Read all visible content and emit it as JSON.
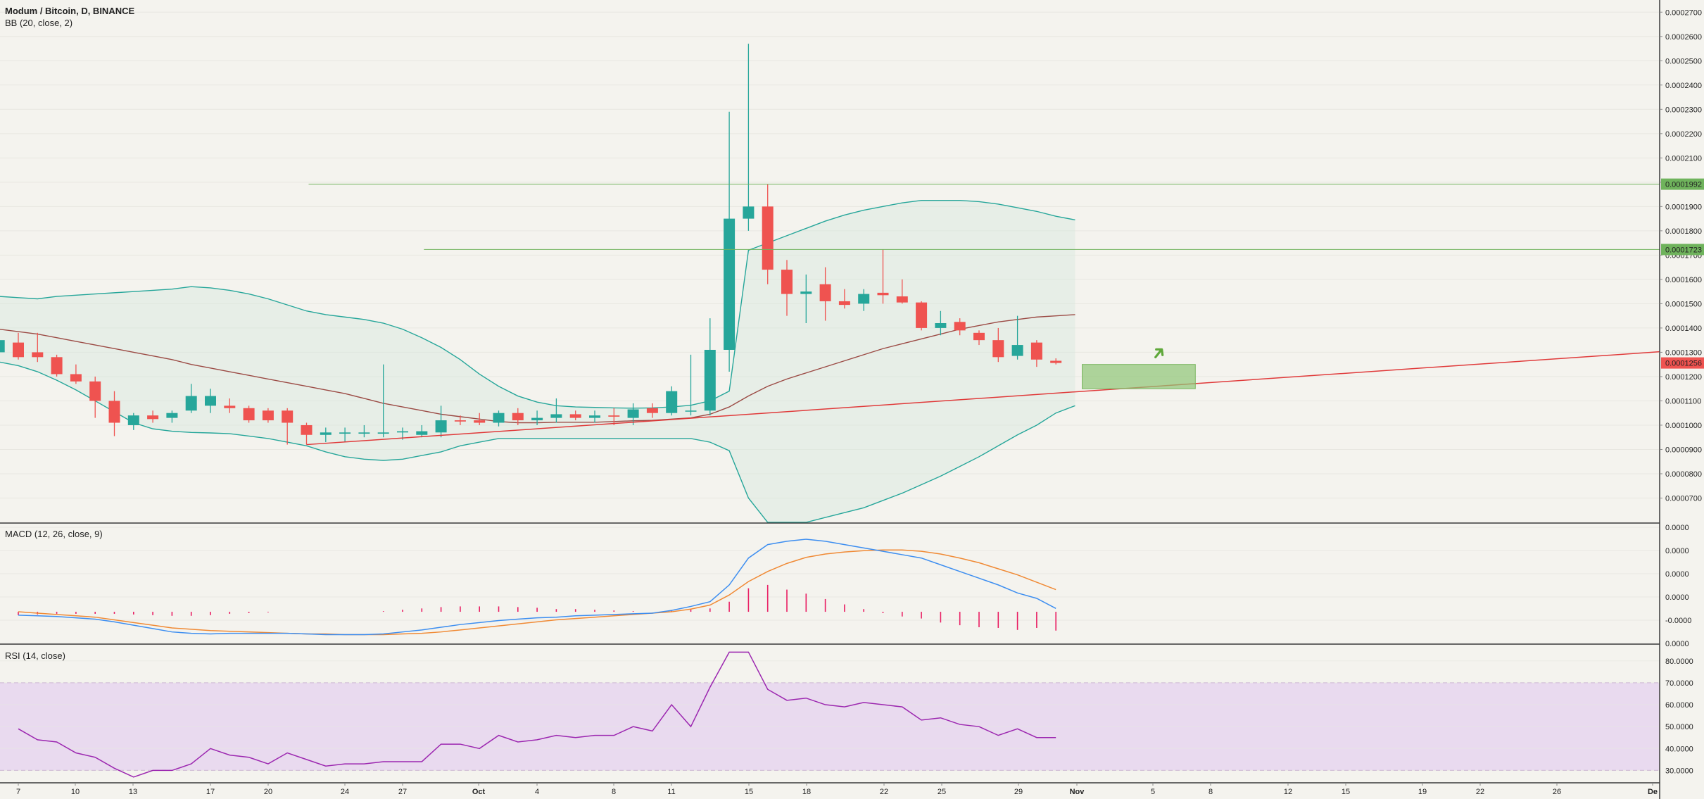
{
  "chart_data": [
    {
      "type": "candlestick",
      "title": "Modum / Bitcoin, D, BINANCE",
      "indicator_label": "BB (20, close, 2)",
      "ylim": [
        6e-05,
        0.000275
      ],
      "y_ticks": [
        "0.0002700",
        "0.0002600",
        "0.0002500",
        "0.0002400",
        "0.0002300",
        "0.0002200",
        "0.0002100",
        "0.0002000",
        "0.0001900",
        "0.0001800",
        "0.0001700",
        "0.0001600",
        "0.0001500",
        "0.0001400",
        "0.0001300",
        "0.0001200",
        "0.0001100",
        "0.0001000",
        "0.0000900",
        "0.0000800",
        "0.0000700"
      ],
      "price_tags": [
        {
          "value": 0.0001992,
          "label": "0.0001992",
          "color": "#6fb35c"
        },
        {
          "value": 0.0001723,
          "label": "0.0001723",
          "color": "#6fb35c"
        },
        {
          "value": 0.0001256,
          "label": "0.0001256",
          "color": "#ef5350"
        }
      ],
      "candles": [
        {
          "date": "Sep 6",
          "o": 0.00013,
          "h": 0.000139,
          "l": 0.000126,
          "c": 0.000135
        },
        {
          "date": "Sep 7",
          "o": 0.000134,
          "h": 0.000138,
          "l": 0.000127,
          "c": 0.000128
        },
        {
          "date": "Sep 8",
          "o": 0.00013,
          "h": 0.000138,
          "l": 0.000126,
          "c": 0.000128
        },
        {
          "date": "Sep 9",
          "o": 0.000128,
          "h": 0.000129,
          "l": 0.00012,
          "c": 0.000121
        },
        {
          "date": "Sep 10",
          "o": 0.000121,
          "h": 0.000125,
          "l": 0.000117,
          "c": 0.000118
        },
        {
          "date": "Sep 11",
          "o": 0.000118,
          "h": 0.00012,
          "l": 0.000103,
          "c": 0.00011
        },
        {
          "date": "Sep 12",
          "o": 0.00011,
          "h": 0.000114,
          "l": 9.55e-05,
          "c": 0.000101
        },
        {
          "date": "Sep 13",
          "o": 0.0001,
          "h": 0.000105,
          "l": 9.8e-05,
          "c": 0.000104
        },
        {
          "date": "Sep 14",
          "o": 0.000104,
          "h": 0.000106,
          "l": 0.000101,
          "c": 0.0001025
        },
        {
          "date": "Sep 15",
          "o": 0.000103,
          "h": 0.000106,
          "l": 0.000101,
          "c": 0.000105
        },
        {
          "date": "Sep 16",
          "o": 0.000106,
          "h": 0.000117,
          "l": 0.000105,
          "c": 0.000112
        },
        {
          "date": "Sep 17",
          "o": 0.000108,
          "h": 0.000115,
          "l": 0.000105,
          "c": 0.000112
        },
        {
          "date": "Sep 18",
          "o": 0.000108,
          "h": 0.000111,
          "l": 0.000105,
          "c": 0.000107
        },
        {
          "date": "Sep 19",
          "o": 0.000107,
          "h": 0.000108,
          "l": 0.000101,
          "c": 0.000102
        },
        {
          "date": "Sep 20",
          "o": 0.000106,
          "h": 0.000107,
          "l": 0.000101,
          "c": 0.000102
        },
        {
          "date": "Sep 21",
          "o": 0.000106,
          "h": 0.000107,
          "l": 9.2e-05,
          "c": 0.000101
        },
        {
          "date": "Sep 22",
          "o": 0.0001,
          "h": 0.000101,
          "l": 9.2e-05,
          "c": 9.6e-05
        },
        {
          "date": "Sep 23",
          "o": 9.6e-05,
          "h": 9.9e-05,
          "l": 9.3e-05,
          "c": 9.7e-05
        },
        {
          "date": "Sep 24",
          "o": 9.65e-05,
          "h": 9.9e-05,
          "l": 9.3e-05,
          "c": 9.7e-05
        },
        {
          "date": "Sep 25",
          "o": 9.65e-05,
          "h": 0.0001,
          "l": 9.5e-05,
          "c": 9.7e-05
        },
        {
          "date": "Sep 26",
          "o": 9.65e-05,
          "h": 0.000125,
          "l": 9.5e-05,
          "c": 9.7e-05
        },
        {
          "date": "Sep 27",
          "o": 9.7e-05,
          "h": 9.9e-05,
          "l": 9.4e-05,
          "c": 9.75e-05
        },
        {
          "date": "Sep 28",
          "o": 9.6e-05,
          "h": 0.0001,
          "l": 9.5e-05,
          "c": 9.75e-05
        },
        {
          "date": "Sep 29",
          "o": 9.7e-05,
          "h": 0.000108,
          "l": 9.5e-05,
          "c": 0.000102
        },
        {
          "date": "Sep 30",
          "o": 0.000102,
          "h": 0.000104,
          "l": 0.0001,
          "c": 0.0001015
        },
        {
          "date": "Oct 1",
          "o": 0.000102,
          "h": 0.000105,
          "l": 0.0001,
          "c": 0.000101
        },
        {
          "date": "Oct 2",
          "o": 0.000101,
          "h": 0.000106,
          "l": 9.95e-05,
          "c": 0.000105
        },
        {
          "date": "Oct 3",
          "o": 0.000105,
          "h": 0.000107,
          "l": 0.0001,
          "c": 0.000102
        },
        {
          "date": "Oct 4",
          "o": 0.000102,
          "h": 0.000106,
          "l": 0.0001,
          "c": 0.000103
        },
        {
          "date": "Oct 5",
          "o": 0.000103,
          "h": 0.000111,
          "l": 0.000101,
          "c": 0.0001045
        },
        {
          "date": "Oct 6",
          "o": 0.0001045,
          "h": 0.000106,
          "l": 0.000102,
          "c": 0.000103
        },
        {
          "date": "Oct 7",
          "o": 0.000103,
          "h": 0.000106,
          "l": 0.000101,
          "c": 0.000104
        },
        {
          "date": "Oct 8",
          "o": 0.000104,
          "h": 0.000107,
          "l": 0.0001,
          "c": 0.0001035
        },
        {
          "date": "Oct 9",
          "o": 0.000103,
          "h": 0.000109,
          "l": 0.0001,
          "c": 0.0001065
        },
        {
          "date": "Oct 10",
          "o": 0.000107,
          "h": 0.000109,
          "l": 0.000103,
          "c": 0.000105
        },
        {
          "date": "Oct 11",
          "o": 0.000105,
          "h": 0.000116,
          "l": 0.000104,
          "c": 0.000114
        },
        {
          "date": "Oct 12",
          "o": 0.000106,
          "h": 0.000129,
          "l": 0.000104,
          "c": 0.000106
        },
        {
          "date": "Oct 13",
          "o": 0.000106,
          "h": 0.000144,
          "l": 0.000104,
          "c": 0.000131
        },
        {
          "date": "Oct 14",
          "o": 0.000131,
          "h": 0.000229,
          "l": 0.000122,
          "c": 0.000185
        },
        {
          "date": "Oct 15",
          "o": 0.000185,
          "h": 0.000257,
          "l": 0.00018,
          "c": 0.00019
        },
        {
          "date": "Oct 16",
          "o": 0.00019,
          "h": 0.0001992,
          "l": 0.000158,
          "c": 0.000164
        },
        {
          "date": "Oct 17",
          "o": 0.000164,
          "h": 0.000168,
          "l": 0.000145,
          "c": 0.000154
        },
        {
          "date": "Oct 18",
          "o": 0.000154,
          "h": 0.000162,
          "l": 0.000142,
          "c": 0.000155
        },
        {
          "date": "Oct 19",
          "o": 0.000158,
          "h": 0.000165,
          "l": 0.000143,
          "c": 0.000151
        },
        {
          "date": "Oct 20",
          "o": 0.000151,
          "h": 0.000156,
          "l": 0.000148,
          "c": 0.0001495
        },
        {
          "date": "Oct 21",
          "o": 0.00015,
          "h": 0.000156,
          "l": 0.000147,
          "c": 0.000154
        },
        {
          "date": "Oct 22",
          "o": 0.0001545,
          "h": 0.0001723,
          "l": 0.00015,
          "c": 0.0001535
        },
        {
          "date": "Oct 23",
          "o": 0.000153,
          "h": 0.00016,
          "l": 0.00015,
          "c": 0.0001505
        },
        {
          "date": "Oct 24",
          "o": 0.0001505,
          "h": 0.000151,
          "l": 0.000139,
          "c": 0.00014
        },
        {
          "date": "Oct 25",
          "o": 0.00014,
          "h": 0.000147,
          "l": 0.000137,
          "c": 0.000142
        },
        {
          "date": "Oct 26",
          "o": 0.0001425,
          "h": 0.000144,
          "l": 0.000137,
          "c": 0.000139
        },
        {
          "date": "Oct 27",
          "o": 0.000138,
          "h": 0.000139,
          "l": 0.000133,
          "c": 0.000135
        },
        {
          "date": "Oct 28",
          "o": 0.000135,
          "h": 0.00014,
          "l": 0.000126,
          "c": 0.000128
        },
        {
          "date": "Oct 29",
          "o": 0.0001285,
          "h": 0.000145,
          "l": 0.000127,
          "c": 0.000133
        },
        {
          "date": "Oct 30",
          "o": 0.000134,
          "h": 0.000135,
          "l": 0.000124,
          "c": 0.000127
        },
        {
          "date": "Oct 31",
          "o": 0.0001265,
          "h": 0.0001275,
          "l": 0.000125,
          "c": 0.0001256
        }
      ],
      "bb_upper": [
        0.000153,
        0.0001525,
        0.000152,
        0.000153,
        0.0001535,
        0.000154,
        0.0001545,
        0.000155,
        0.0001555,
        0.000156,
        0.000157,
        0.0001565,
        0.0001555,
        0.000154,
        0.000152,
        0.0001495,
        0.000147,
        0.0001455,
        0.0001445,
        0.0001435,
        0.000142,
        0.0001395,
        0.000136,
        0.000132,
        0.000127,
        0.000121,
        0.000116,
        0.000112,
        0.0001095,
        0.000108,
        0.0001075,
        0.0001073,
        0.0001071,
        0.000107,
        0.0001071,
        0.0001075,
        0.0001082,
        0.00011,
        0.000114,
        0.000172,
        0.000175,
        0.000178,
        0.000181,
        0.000184,
        0.0001865,
        0.0001885,
        0.00019,
        0.0001915,
        0.0001925,
        0.0001925,
        0.0001925,
        0.000192,
        0.000191,
        0.0001895,
        0.000188,
        0.000186,
        0.0001845
      ],
      "bb_lower": [
        0.000126,
        0.0001245,
        0.000122,
        0.0001185,
        0.0001145,
        0.00011,
        0.0001055,
        0.000101,
        9.85e-05,
        9.75e-05,
        9.7e-05,
        9.68e-05,
        9.65e-05,
        9.55e-05,
        9.45e-05,
        9.3e-05,
        9.15e-05,
        8.9e-05,
        8.7e-05,
        8.6e-05,
        8.55e-05,
        8.6e-05,
        8.75e-05,
        8.9e-05,
        9.15e-05,
        9.3e-05,
        9.45e-05,
        9.45e-05,
        9.45e-05,
        9.45e-05,
        9.45e-05,
        9.45e-05,
        9.45e-05,
        9.45e-05,
        9.45e-05,
        9.45e-05,
        9.45e-05,
        9.3e-05,
        8.95e-05,
        7e-05,
        6e-05,
        5.7e-05,
        6e-05,
        6.2e-05,
        6.4e-05,
        6.6e-05,
        6.9e-05,
        7.2e-05,
        7.55e-05,
        7.9e-05,
        8.3e-05,
        8.7e-05,
        9.15e-05,
        9.6e-05,
        0.0001,
        0.000105,
        0.000108
      ],
      "bb_middle": [
        0.0001395,
        0.0001385,
        0.0001375,
        0.000136,
        0.0001345,
        0.000133,
        0.0001315,
        0.00013,
        0.0001285,
        0.000127,
        0.000125,
        0.0001235,
        0.000122,
        0.0001205,
        0.000119,
        0.0001175,
        0.000116,
        0.0001145,
        0.000113,
        0.000111,
        0.000109,
        0.0001075,
        0.000106,
        0.0001045,
        0.0001035,
        0.0001025,
        0.0001015,
        0.000101,
        0.000101,
        0.0001012,
        0.0001012,
        0.0001012,
        0.0001015,
        0.0001018,
        0.000102,
        0.0001025,
        0.000103,
        0.0001045,
        0.0001075,
        0.000112,
        0.000116,
        0.000119,
        0.0001215,
        0.000124,
        0.0001265,
        0.000129,
        0.0001315,
        0.0001335,
        0.0001355,
        0.0001375,
        0.0001395,
        0.000141,
        0.0001425,
        0.0001435,
        0.0001445,
        0.000145,
        0.0001455
      ],
      "support_line": [
        {
          "date": "Sep 22",
          "value": 9.2e-05
        },
        {
          "date": "Dec 1",
          "value": 0.00013
        }
      ],
      "target_box": {
        "date_from": "Nov 1",
        "date_to": "Nov 7",
        "price_from": 0.000115,
        "price_to": 0.000125
      },
      "x_ticks": [
        "7",
        "10",
        "13",
        "17",
        "20",
        "24",
        "27",
        "Oct",
        "4",
        "8",
        "11",
        "15",
        "18",
        "22",
        "25",
        "29",
        "Nov",
        "5",
        "8",
        "12",
        "15",
        "19",
        "22",
        "26",
        "De"
      ]
    },
    {
      "type": "line",
      "title": "MACD (12, 26, close, 9)",
      "y_ticks": [
        "0.0000",
        "0.0000",
        "0.0000",
        "0.0000",
        "-0.0000",
        "0.0000"
      ],
      "series": [
        {
          "name": "MACD",
          "color": "#3d8ef0",
          "values": [
            -0.5,
            -0.6,
            -0.7,
            -0.9,
            -1.1,
            -1.5,
            -2.0,
            -2.5,
            -3.0,
            -3.2,
            -3.3,
            -3.2,
            -3.2,
            -3.2,
            -3.2,
            -3.3,
            -3.4,
            -3.4,
            -3.4,
            -3.3,
            -3.0,
            -2.7,
            -2.3,
            -1.9,
            -1.6,
            -1.3,
            -1.1,
            -0.9,
            -0.8,
            -0.6,
            -0.5,
            -0.4,
            -0.3,
            -0.2,
            0.2,
            0.8,
            1.5,
            4.0,
            8.0,
            10.0,
            10.5,
            10.8,
            10.5,
            10.0,
            9.5,
            9.0,
            8.5,
            8.0,
            7.0,
            6.0,
            5.0,
            4.0,
            2.8,
            2.0,
            0.5
          ]
        },
        {
          "name": "Signal",
          "color": "#f08a35",
          "values": [
            0.0,
            -0.2,
            -0.4,
            -0.6,
            -0.8,
            -1.2,
            -1.6,
            -2.0,
            -2.4,
            -2.6,
            -2.8,
            -2.9,
            -3.0,
            -3.1,
            -3.2,
            -3.3,
            -3.3,
            -3.4,
            -3.4,
            -3.4,
            -3.3,
            -3.2,
            -3.0,
            -2.7,
            -2.4,
            -2.1,
            -1.8,
            -1.5,
            -1.2,
            -1.0,
            -0.8,
            -0.6,
            -0.4,
            -0.2,
            0.0,
            0.4,
            1.0,
            2.5,
            4.5,
            6.0,
            7.2,
            8.1,
            8.6,
            8.9,
            9.1,
            9.2,
            9.2,
            9.0,
            8.6,
            8.0,
            7.3,
            6.4,
            5.5,
            4.4,
            3.3
          ]
        },
        {
          "name": "Histogram",
          "color": "#e91e63",
          "values": [
            -0.5,
            -0.4,
            -0.3,
            -0.3,
            -0.3,
            -0.3,
            -0.4,
            -0.5,
            -0.6,
            -0.6,
            -0.5,
            -0.3,
            -0.2,
            -0.1,
            0.0,
            0.0,
            0.0,
            0.0,
            0.0,
            0.1,
            0.3,
            0.5,
            0.7,
            0.8,
            0.8,
            0.8,
            0.7,
            0.6,
            0.4,
            0.4,
            0.3,
            0.2,
            0.1,
            0.0,
            0.2,
            0.4,
            0.5,
            1.5,
            3.5,
            4.0,
            3.3,
            2.7,
            1.9,
            1.1,
            0.4,
            -0.2,
            -0.7,
            -1.0,
            -1.6,
            -2.0,
            -2.3,
            -2.4,
            -2.7,
            -2.4,
            -2.8
          ]
        }
      ],
      "ylim": [
        -4.5,
        13.0
      ]
    },
    {
      "type": "line",
      "title": "RSI (14, close)",
      "y_ticks": [
        "80.0000",
        "70.0000",
        "60.0000",
        "50.0000",
        "40.0000",
        "30.0000"
      ],
      "ylim": [
        25,
        87
      ],
      "bands": [
        30,
        70
      ],
      "series": [
        {
          "name": "RSI",
          "color": "#9c27b0",
          "values": [
            49,
            44,
            43,
            38,
            36,
            31,
            27,
            30,
            30,
            33,
            40,
            37,
            36,
            33,
            38,
            35,
            32,
            33,
            33,
            34,
            34,
            34,
            42,
            42,
            40,
            46,
            43,
            44,
            46,
            45,
            46,
            46,
            50,
            48,
            60,
            50,
            68,
            84,
            84,
            67,
            62,
            63,
            60,
            59,
            61,
            60,
            59,
            53,
            54,
            51,
            50,
            46,
            49,
            45,
            45
          ]
        }
      ]
    }
  ]
}
